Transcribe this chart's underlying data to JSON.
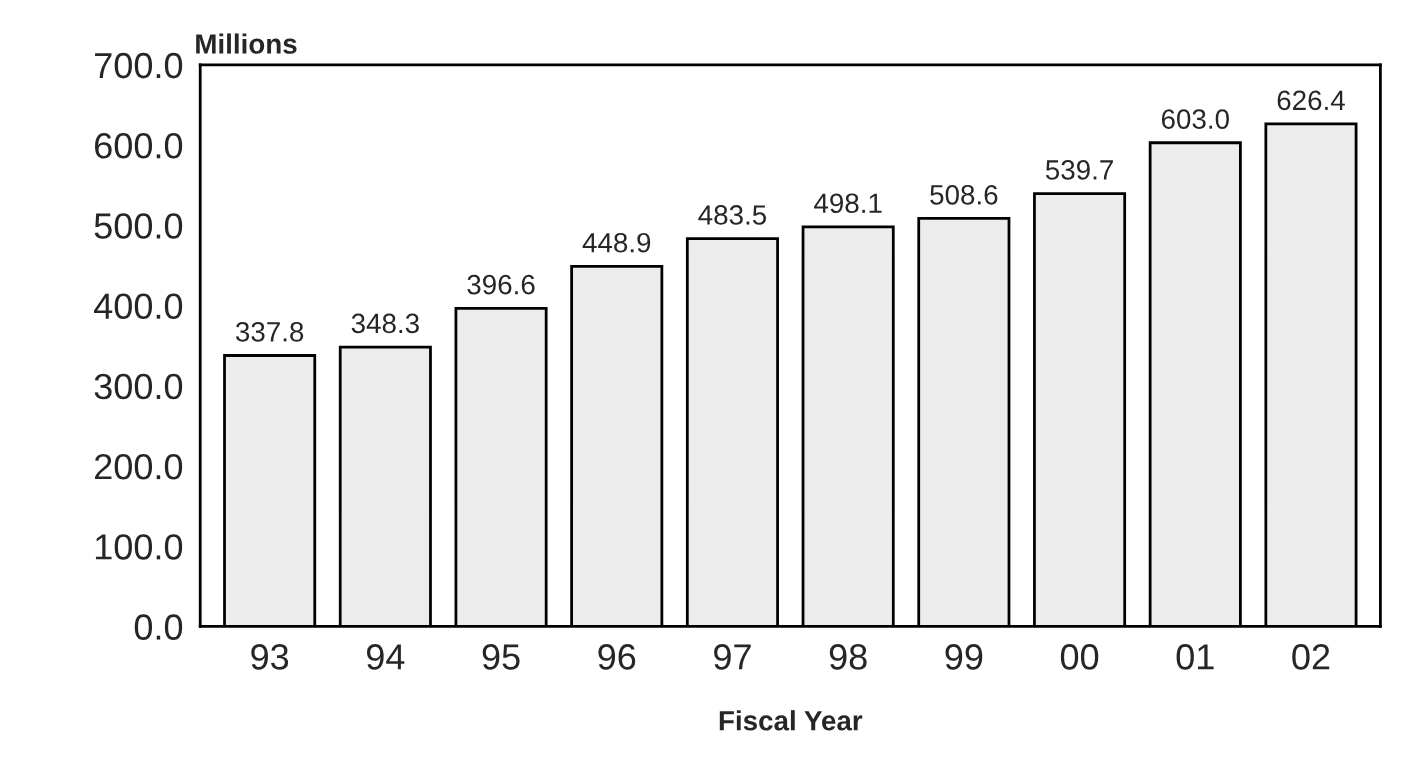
{
  "chart_data": {
    "type": "bar",
    "ylabel": "Millions",
    "xlabel": "Fiscal Year",
    "categories": [
      "93",
      "94",
      "95",
      "96",
      "97",
      "98",
      "99",
      "00",
      "01",
      "02"
    ],
    "values": [
      337.8,
      348.3,
      396.6,
      448.9,
      483.5,
      498.1,
      508.6,
      539.7,
      603.0,
      626.4
    ],
    "value_labels": [
      "337.8",
      "348.3",
      "396.6",
      "448.9",
      "483.5",
      "498.1",
      "508.6",
      "539.7",
      "603.0",
      "626.4"
    ],
    "color": "#ececec",
    "ylim": [
      0,
      700
    ],
    "yticks": [
      {
        "value": 0,
        "label": "0.0"
      },
      {
        "value": 100,
        "label": "100.0"
      },
      {
        "value": 200,
        "label": "200.0"
      },
      {
        "value": 300,
        "label": "300.0"
      },
      {
        "value": 400,
        "label": "400.0"
      },
      {
        "value": 500,
        "label": "500.0"
      },
      {
        "value": 600,
        "label": "600.0"
      },
      {
        "value": 700,
        "label": "700.0"
      }
    ],
    "grid": false
  }
}
